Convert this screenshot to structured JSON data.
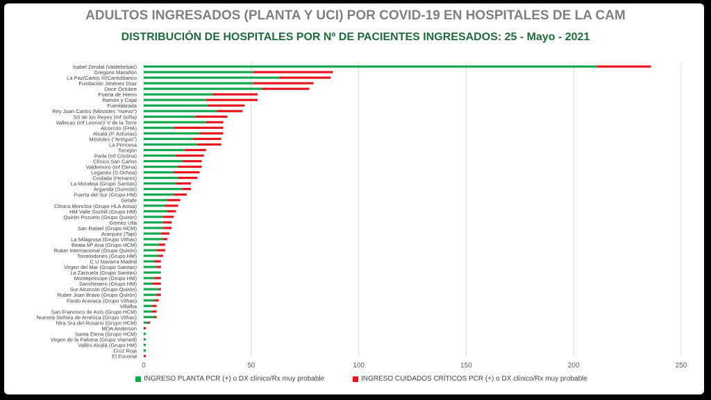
{
  "header": {
    "title": "ADULTOS INGRESADOS (PLANTA Y UCI) POR COVID-19 EN HOSPITALES DE LA CAM",
    "subtitle": "DISTRIBUCIÓN DE HOSPITALES POR Nº DE PACIENTES INGRESADOS: 25 - Mayo - 2021"
  },
  "colors": {
    "planta": "#12a84b",
    "uci": "#e8141c",
    "grid": "#d9d9d9",
    "text": "#404040"
  },
  "chart_data": {
    "type": "bar",
    "orientation": "horizontal",
    "stacked": true,
    "title": "DISTRIBUCIÓN DE HOSPITALES POR Nº DE PACIENTES INGRESADOS: 25 - Mayo - 2021",
    "xlim": [
      0,
      250
    ],
    "xticks": [
      0,
      50,
      100,
      150,
      200,
      250
    ],
    "grid": true,
    "legend_position": "bottom",
    "categories": [
      "Isabel Zendal (Valdebebas)",
      "Gregorio Marañón",
      "La Paz/Carlos III/Cantoblanco",
      "Fundación Jiménez Díaz",
      "Doce Octubre",
      "Puerta de Hierro",
      "Ramón y Cajal",
      "Fuenlabrada",
      "Rey Juan Carlos (Móstoles \"nuevo\")",
      "SS de los Reyes (Inf Sofía)",
      "Vallecas (Inf Leonor)/ V de la Torre",
      "Alcorcón (FHA)",
      "Alcalá (P. Asturias)",
      "Móstoles (\"Antiguo\")",
      "La Princesa",
      "Torrejón",
      "Parla (Inf Cristina)",
      "Clínico San Carlos",
      "Valdemoro (Inf Elena)",
      "Leganés (S Ochoa)",
      "Coslada (Henares)",
      "La Moraleja (Grupo Sanitas)",
      "Arganda (Sureste)",
      "Puerta del Sur (Grupo HM)",
      "Getafe",
      "Clínica Moncloa (Grupo HLA Asisa)",
      "HM Valle Suchill (Grupo HM)",
      "Quirón Pozuelo (Grupo Quirón)",
      "Gómez Ulla",
      "San Rafael (Grupo HCM)",
      "Aranjuez (Tajo)",
      "La Milagrosa (Grupo Vithas)",
      "Beata Mª Ana (Grupo HCM)",
      "Ruber Internacional (Grupo Quirón)",
      "Torrelodones (Grupo HM)",
      "C.U Navarra Madrid",
      "Virgen del Mar (Grupo Sanitas)",
      "La Zarzuela (Grupo Sanitas)",
      "Montepríncipe (Grupo HM)",
      "Sanchinarro (Grupo HM)",
      "Sur Alcorcón (Grupo Quirón)",
      "Ruber Juan Bravo (Grupo Quirón)",
      "Pardo Aravaca (Grupo Vithas)",
      "Villalba",
      "San Francisco de Asís (Grupo HCM)",
      "Nuestra Señora de América (Grupo Vithas)",
      "Ntra Sra del Rosario (Grupo HCM)",
      "MDA Anderson",
      "Santa Elena (Grupo HCM)",
      "Virgen de la Paloma (Grupo Viamed)",
      "Vallés Alcalá (Grupo HM)",
      "Cruz Roja",
      "El Escorial"
    ],
    "series": [
      {
        "name": "INGRESO PLANTA PCR (+) o DX clínico/Rx muy probable",
        "values": [
          211,
          51,
          63,
          51,
          55,
          32,
          29,
          30,
          34,
          24,
          29,
          14,
          26,
          23,
          25,
          19,
          15,
          18,
          16,
          14,
          16,
          15,
          18,
          14,
          11,
          10,
          11,
          9,
          9,
          9,
          8,
          9,
          7,
          6,
          7,
          5,
          6,
          8,
          5,
          4,
          7,
          6,
          5,
          4,
          4,
          5,
          2,
          0,
          1,
          1,
          1,
          1,
          0
        ]
      },
      {
        "name": "INGRESO CUIDADOS CRÍTICOS PCR (+) o DX clínico/Rx muy probable",
        "values": [
          25,
          37,
          24,
          28,
          22,
          21,
          24,
          17,
          12,
          15,
          8,
          23,
          11,
          13,
          11,
          10,
          13,
          9,
          11,
          12,
          9,
          7,
          4,
          6,
          6,
          6,
          4,
          5,
          4,
          4,
          4,
          2,
          3,
          4,
          2,
          3,
          2,
          0,
          3,
          4,
          1,
          2,
          2,
          2,
          2,
          1,
          1,
          1,
          0,
          0,
          0,
          0,
          1
        ]
      }
    ]
  }
}
